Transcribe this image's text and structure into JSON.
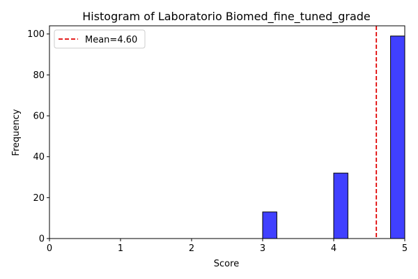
{
  "chart_data": {
    "type": "bar",
    "title": "Histogram of Laboratorio Biomed_fine_tuned_grade",
    "xlabel": "Score",
    "ylabel": "Frequency",
    "xlim": [
      0,
      5
    ],
    "ylim": [
      0,
      104
    ],
    "xticks": [
      "0",
      "1",
      "2",
      "3",
      "4",
      "5"
    ],
    "yticks": [
      "0",
      "20",
      "40",
      "60",
      "80",
      "100"
    ],
    "bins": [
      {
        "x0": 3.0,
        "x1": 3.2,
        "value": 13
      },
      {
        "x0": 3.2,
        "x1": 3.4,
        "value": 0
      },
      {
        "x0": 3.4,
        "x1": 3.6,
        "value": 0
      },
      {
        "x0": 3.6,
        "x1": 3.8,
        "value": 0
      },
      {
        "x0": 3.8,
        "x1": 4.0,
        "value": 0
      },
      {
        "x0": 4.0,
        "x1": 4.2,
        "value": 32
      },
      {
        "x0": 4.2,
        "x1": 4.4,
        "value": 0
      },
      {
        "x0": 4.4,
        "x1": 4.6,
        "value": 0
      },
      {
        "x0": 4.6,
        "x1": 4.8,
        "value": 0
      },
      {
        "x0": 4.8,
        "x1": 5.0,
        "value": 99
      }
    ],
    "bar_color": "#4040ff",
    "edge_color": "#000000",
    "mean": {
      "value": 4.6,
      "label": "Mean=4.60",
      "color": "#e00000"
    },
    "legend_position": "upper-left",
    "grid": false
  }
}
